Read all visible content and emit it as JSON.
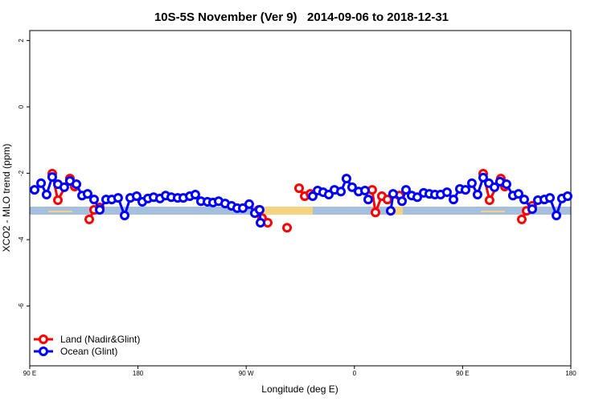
{
  "chart_data": {
    "type": "line",
    "title": "10S-5S November (Ver 9)   2014-09-06 to 2018-12-31",
    "x_label": "Longitude (deg E)",
    "y_label": "XCO2 - MLO trend (ppm)",
    "xlim": [
      90,
      540
    ],
    "ylim": [
      -7.8,
      2.3
    ],
    "xticks": [
      {
        "value": 90,
        "label": "90 E"
      },
      180,
      {
        "value": 270,
        "label": "90 W"
      },
      {
        "value": 360,
        "label": "0"
      },
      {
        "value": 450,
        "label": "90 E"
      },
      {
        "value": 540,
        "label": "180"
      }
    ],
    "yticks": [
      2,
      0,
      -2,
      -4,
      -6
    ],
    "legend": "bottom-left",
    "series": [
      {
        "name": "Land (Nadir&Glint)",
        "color": "#ff0000",
        "x": [
          108.7,
          113.4,
          123.4,
          127.4,
          null,
          139.5,
          143.5,
          148.2,
          null,
          280.5,
          283.2,
          287.9,
          null,
          304.0,
          null,
          314.0,
          318.7,
          323.4,
          null,
          374.8,
          377.5,
          382.8,
          387.5,
          null,
          397.5,
          null,
          467.1,
          472.4,
          481.8,
          485.1,
          null,
          499.2,
          503.2,
          507.9
        ],
        "values": [
          -2.01,
          -2.81,
          -2.16,
          -2.4,
          null,
          -3.39,
          -3.1,
          -3.03,
          null,
          -3.1,
          -3.35,
          -3.49,
          null,
          -3.64,
          null,
          -2.45,
          -2.69,
          -2.62,
          null,
          -2.5,
          -3.18,
          -2.69,
          -2.79,
          null,
          -2.67,
          null,
          -2.01,
          -2.81,
          -2.16,
          -2.4,
          null,
          -3.39,
          -3.13,
          -2.98
        ]
      },
      {
        "name": "Ocean (Glint)",
        "color": "#0000ff",
        "x": [
          94.0,
          99.4,
          104.0,
          108.7,
          113.4,
          118.7,
          123.4,
          128.8,
          133.5,
          138.1,
          143.5,
          148.2,
          153.5,
          158.2,
          163.5,
          168.9,
          173.6,
          178.9,
          183.6,
          188.3,
          193.0,
          198.3,
          203.0,
          207.7,
          213.0,
          217.7,
          223.1,
          227.7,
          232.4,
          237.8,
          242.4,
          247.1,
          252.5,
          257.8,
          262.5,
          267.2,
          272.5,
          277.2,
          281.2,
          281.9,
          null,
          325.3,
          329.4,
          334.0,
          338.7,
          343.4,
          348.8,
          353.4,
          358.1,
          363.5,
          368.8,
          371.5,
          null,
          390.2,
          392.2,
          399.6,
          402.9,
          407.6,
          412.3,
          417.6,
          422.3,
          427.0,
          431.7,
          437.0,
          442.4,
          447.7,
          452.4,
          457.7,
          462.4,
          467.1,
          471.8,
          476.5,
          481.1,
          486.5,
          491.8,
          496.5,
          501.2,
          507.9,
          512.6,
          518.0,
          522.6,
          528.0,
          532.6,
          537.3
        ],
        "values": [
          -2.5,
          -2.3,
          -2.64,
          -2.11,
          -2.33,
          -2.42,
          -2.23,
          -2.33,
          -2.67,
          -2.62,
          -2.79,
          -3.1,
          -2.79,
          -2.79,
          -2.74,
          -3.27,
          -2.74,
          -2.69,
          -2.86,
          -2.76,
          -2.72,
          -2.76,
          -2.67,
          -2.72,
          -2.74,
          -2.74,
          -2.69,
          -2.64,
          -2.84,
          -2.86,
          -2.88,
          -2.84,
          -2.91,
          -2.98,
          -3.05,
          -3.05,
          -2.93,
          -3.2,
          -3.1,
          -3.49,
          null,
          -2.69,
          -2.52,
          -2.57,
          -2.64,
          -2.5,
          -2.55,
          -2.16,
          -2.42,
          -2.55,
          -2.52,
          -2.79,
          null,
          -3.13,
          -2.62,
          -2.84,
          -2.5,
          -2.67,
          -2.72,
          -2.59,
          -2.62,
          -2.64,
          -2.64,
          -2.57,
          -2.79,
          -2.47,
          -2.5,
          -2.3,
          -2.64,
          -2.13,
          -2.3,
          -2.42,
          -2.25,
          -2.33,
          -2.67,
          -2.62,
          -2.79,
          -3.08,
          -2.81,
          -2.79,
          -2.74,
          -3.27,
          -2.76,
          -2.69
        ]
      }
    ]
  }
}
